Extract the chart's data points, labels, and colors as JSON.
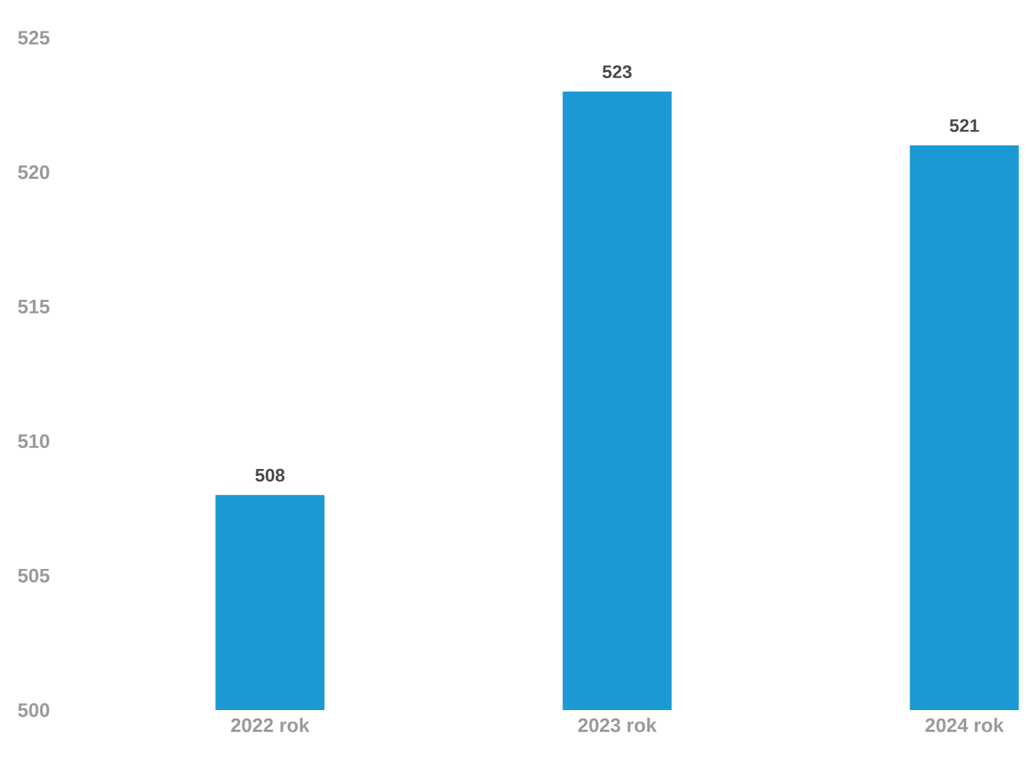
{
  "chart_data": {
    "type": "bar",
    "categories": [
      "2022 rok",
      "2023 rok",
      "2024 rok"
    ],
    "values": [
      508,
      523,
      521
    ],
    "color": "#1b9ad6",
    "ylim": [
      500,
      525
    ],
    "yticks": [
      500,
      505,
      510,
      515,
      520,
      525
    ],
    "data_labels": true
  }
}
